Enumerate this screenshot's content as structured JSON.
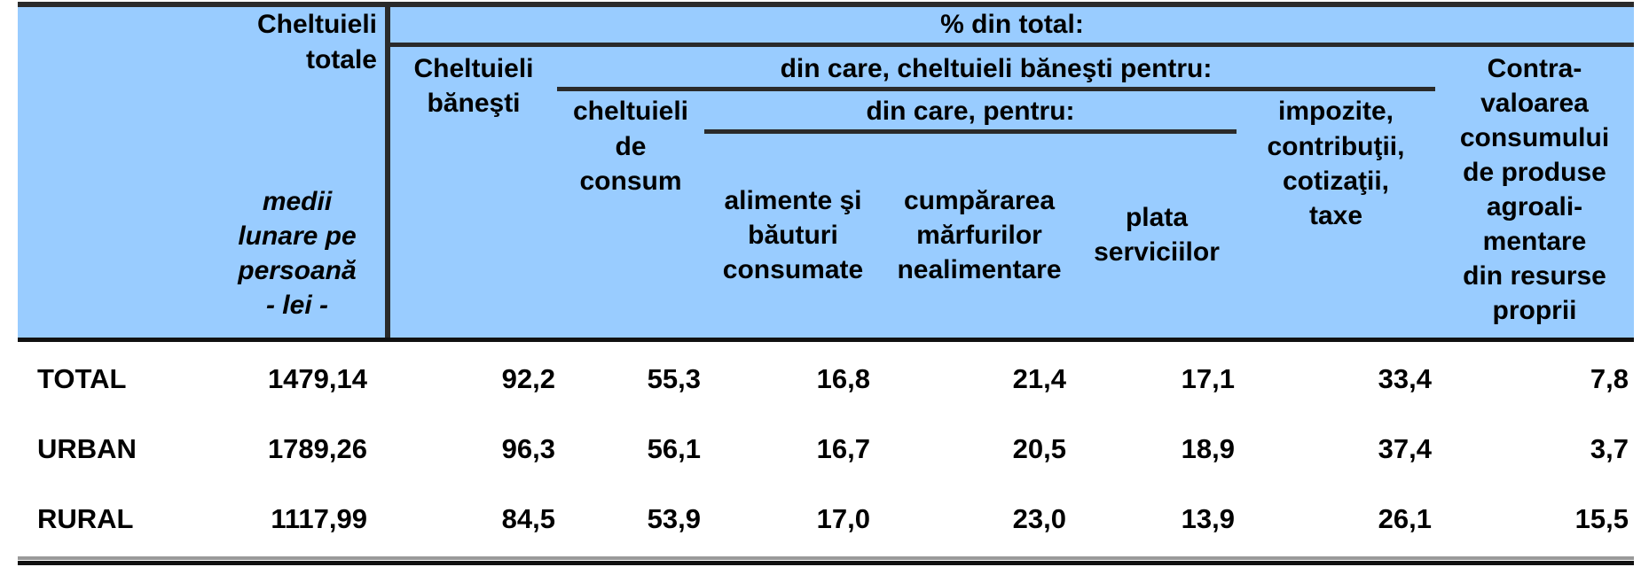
{
  "header": {
    "col_total_l1": "Cheltuieli",
    "col_total_l2": "totale",
    "unit_l1": "medii",
    "unit_l2": "lunare pe",
    "unit_l3": "persoană",
    "unit_l4": "- lei -",
    "pct_title": "% din total:",
    "banesti_l1": "Cheltuieli",
    "banesti_l2": "băneşti",
    "din_care_banesti": "din care, cheltuieli băneşti pentru:",
    "consum_l1": "cheltuieli",
    "consum_l2": "de",
    "consum_l3": "consum",
    "din_care_pentru": "din care, pentru:",
    "alimente_l1": "alimente şi",
    "alimente_l2": "băuturi",
    "alimente_l3": "consumate",
    "marfuri_l1": "cumpărarea",
    "marfuri_l2": "mărfurilor",
    "marfuri_l3": "nealimentare",
    "servicii_l1": "plata",
    "servicii_l2": "serviciilor",
    "impozite_l1": "impozite,",
    "impozite_l2": "contribuţii,",
    "impozite_l3": "cotizaţii,",
    "impozite_l4": "taxe",
    "contra_l1": "Contra-",
    "contra_l2": "valoarea",
    "contra_l3": "consumului",
    "contra_l4": "de produse",
    "contra_l5": "agroali-",
    "contra_l6": "mentare",
    "contra_l7": "din resurse",
    "contra_l8": "proprii"
  },
  "rows": [
    {
      "label": "TOTAL",
      "total": "1479,14",
      "banesti": "92,2",
      "consum": "55,3",
      "alimente": "16,8",
      "marfuri": "21,4",
      "servicii": "17,1",
      "impozite": "33,4",
      "contra": "7,8"
    },
    {
      "label": "URBAN",
      "total": "1789,26",
      "banesti": "96,3",
      "consum": "56,1",
      "alimente": "16,7",
      "marfuri": "20,5",
      "servicii": "18,9",
      "impozite": "37,4",
      "contra": "3,7"
    },
    {
      "label": "RURAL",
      "total": "1117,99",
      "banesti": "84,5",
      "consum": "53,9",
      "alimente": "17,0",
      "marfuri": "23,0",
      "servicii": "13,9",
      "impozite": "26,1",
      "contra": "15,5"
    }
  ],
  "colors": {
    "header_bg": "#99ccff",
    "rule": "#2a2a2a"
  }
}
